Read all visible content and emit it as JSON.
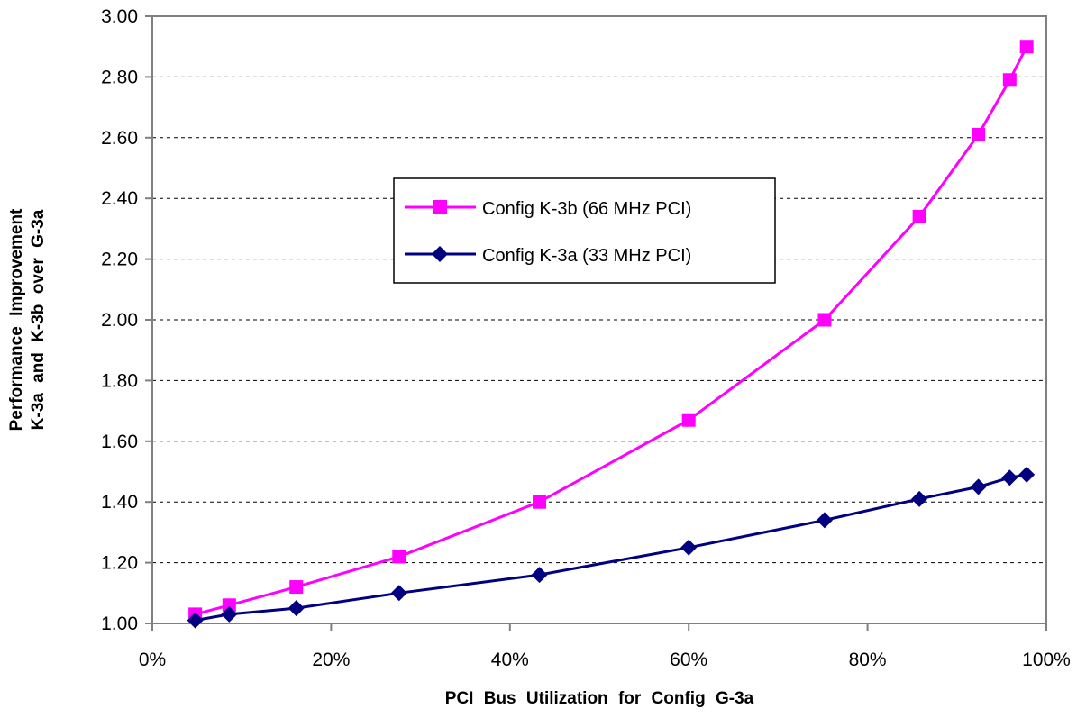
{
  "chart_data": {
    "type": "line",
    "title": "",
    "xlabel": "PCI Bus Utilization for Config G-3a",
    "ylabel_lines": [
      "Performance Improvement",
      "K-3a and K-3b over G-3a"
    ],
    "xlim": [
      0,
      100
    ],
    "ylim": [
      1.0,
      3.0
    ],
    "x_tick_labels": [
      "0%",
      "20%",
      "40%",
      "60%",
      "80%",
      "100%"
    ],
    "x_tick_values": [
      0,
      20,
      40,
      60,
      80,
      100
    ],
    "y_tick_labels": [
      "1.00",
      "1.20",
      "1.40",
      "1.60",
      "1.80",
      "2.00",
      "2.20",
      "2.40",
      "2.60",
      "2.80",
      "3.00"
    ],
    "y_tick_values": [
      1.0,
      1.2,
      1.4,
      1.6,
      1.8,
      2.0,
      2.2,
      2.4,
      2.6,
      2.8,
      3.0
    ],
    "grid": "horizontal dashed",
    "legend_placement": "center",
    "series": [
      {
        "name": "Config K-3b (66 MHz PCI)",
        "color": "#ff00ff",
        "marker": "square",
        "x": [
          4.8,
          8.6,
          16.1,
          27.6,
          43.3,
          60.0,
          75.2,
          85.8,
          92.4,
          95.9,
          97.8
        ],
        "y": [
          1.03,
          1.06,
          1.12,
          1.22,
          1.4,
          1.67,
          2.0,
          2.34,
          2.61,
          2.79,
          2.9
        ]
      },
      {
        "name": "Config K-3a (33 MHz PCI)",
        "color": "#000080",
        "marker": "diamond",
        "x": [
          4.8,
          8.6,
          16.1,
          27.6,
          43.3,
          60.0,
          75.2,
          85.8,
          92.4,
          95.9,
          97.8
        ],
        "y": [
          1.01,
          1.03,
          1.05,
          1.1,
          1.16,
          1.25,
          1.34,
          1.41,
          1.45,
          1.48,
          1.49
        ]
      }
    ]
  }
}
